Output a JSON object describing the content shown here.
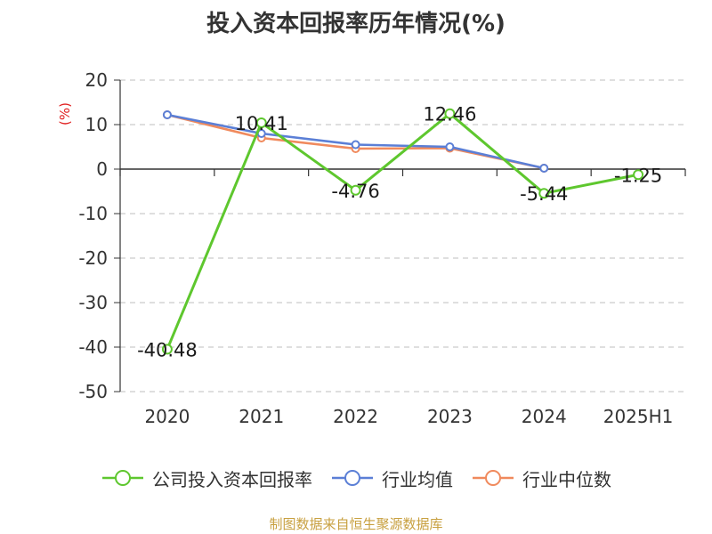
{
  "chart_data": {
    "type": "line",
    "title": "投入资本回报率历年情况(%)",
    "ylabel": "(%)",
    "categories": [
      "2020",
      "2021",
      "2022",
      "2023",
      "2024",
      "2025H1"
    ],
    "ylim": [
      -50,
      20
    ],
    "yticks": [
      20,
      10,
      0,
      -10,
      -20,
      -30,
      -40,
      -50
    ],
    "grid": "horizontal-dashed",
    "legend_position": "bottom",
    "series": [
      {
        "name": "公司投入资本回报率",
        "color": "#5ec72e",
        "values": [
          -40.48,
          10.41,
          -4.76,
          12.46,
          -5.44,
          -1.25
        ],
        "labels": [
          "-40.48",
          "10.41",
          "-4.76",
          "12.46",
          "-5.44",
          "-1.25"
        ],
        "show_labels": true
      },
      {
        "name": "行业均值",
        "color": "#5b7fd6",
        "values": [
          12.2,
          8.0,
          5.5,
          5.0,
          0.2,
          null
        ],
        "show_labels": false
      },
      {
        "name": "行业中位数",
        "color": "#f08a5d",
        "values": [
          12.2,
          7.0,
          4.6,
          4.7,
          0.2,
          null
        ],
        "show_labels": false
      }
    ]
  },
  "footer": {
    "source": "制图数据来自恒生聚源数据库"
  }
}
